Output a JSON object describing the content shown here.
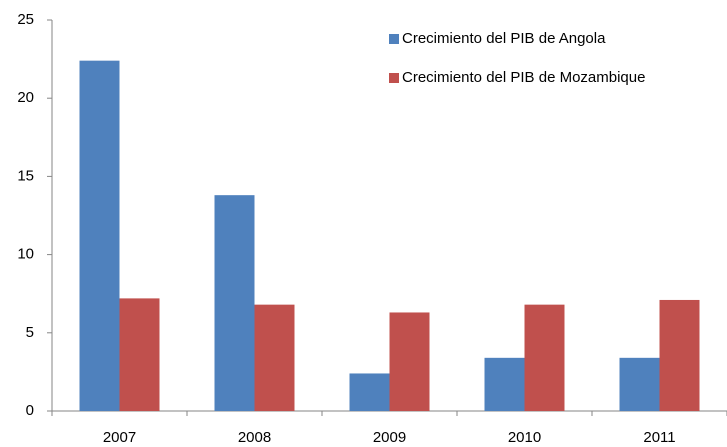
{
  "chart_data": {
    "type": "bar",
    "categories": [
      "2007",
      "2008",
      "2009",
      "2010",
      "2011"
    ],
    "series": [
      {
        "name": "Crecimiento del PIB de Angola",
        "color": "#4f81bd",
        "values": [
          22.4,
          13.8,
          2.4,
          3.4,
          3.4
        ]
      },
      {
        "name": "Crecimiento del PIB de Mozambique",
        "color": "#c0504d",
        "values": [
          7.2,
          6.8,
          6.3,
          6.8,
          7.1
        ]
      }
    ],
    "ylim": [
      0,
      25
    ],
    "yticks": [
      0,
      5,
      10,
      15,
      20,
      25
    ],
    "grid": false,
    "legend": "upper right"
  }
}
